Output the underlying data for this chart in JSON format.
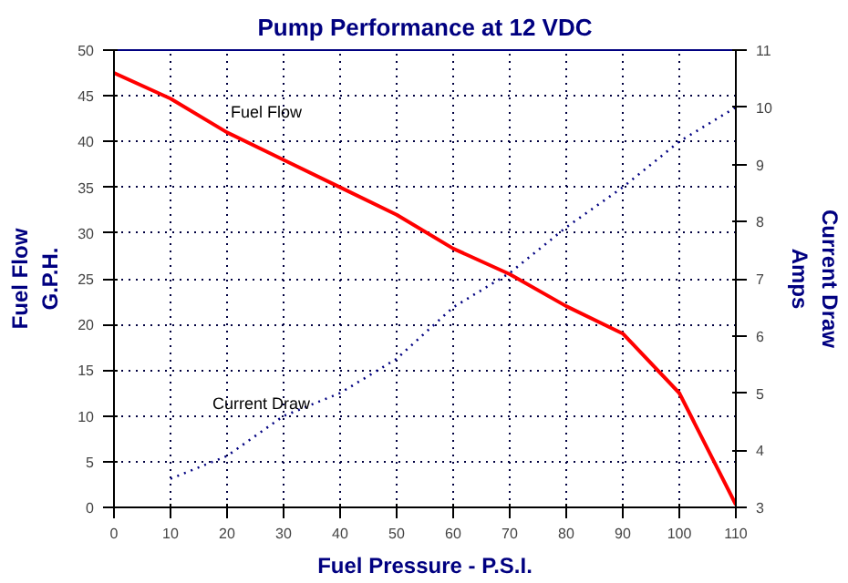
{
  "chart_data": {
    "type": "line",
    "title": "Pump Performance at 12 VDC",
    "xlabel": "Fuel Pressure - P.S.I.",
    "ylabel": "Fuel Flow\nG.P.H.",
    "y2label": "Current Draw\nAmps",
    "x": [
      0,
      10,
      20,
      30,
      40,
      50,
      60,
      70,
      80,
      90,
      100,
      110
    ],
    "series": [
      {
        "name": "Fuel Flow",
        "color": "#ff0000",
        "line_style": "solid",
        "values": [
          47.5,
          44.7,
          41,
          38,
          35,
          32,
          28.3,
          25.5,
          22,
          19,
          12.5,
          0.3
        ]
      },
      {
        "name": "Current Draw",
        "color": "#000080",
        "line_style": "dotted",
        "axis": "y2",
        "values": [
          null,
          3.5,
          3.9,
          4.6,
          5.0,
          5.6,
          6.5,
          7.1,
          7.9,
          8.6,
          9.4,
          10.0
        ]
      }
    ],
    "xlim": [
      0,
      110
    ],
    "xticks": [
      0,
      10,
      20,
      30,
      40,
      50,
      60,
      70,
      80,
      90,
      100,
      110
    ],
    "ylim": [
      0,
      50
    ],
    "yticks": [
      0,
      5,
      10,
      15,
      20,
      25,
      30,
      35,
      40,
      45,
      50
    ],
    "y2lim": [
      3,
      11
    ],
    "y2ticks": [
      3,
      4,
      5,
      6,
      7,
      8,
      9,
      10,
      11
    ],
    "grid": true,
    "marker": "none"
  }
}
